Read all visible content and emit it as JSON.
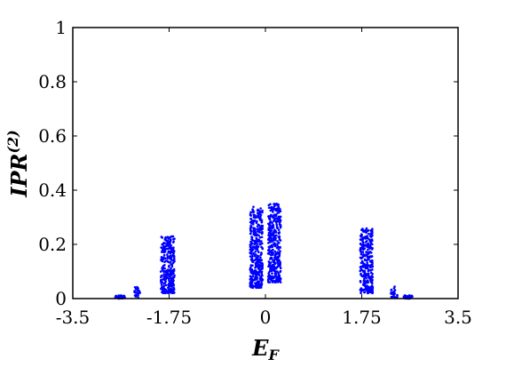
{
  "chart_data": {
    "type": "scatter",
    "xlabel": "E",
    "xlabel_sub": "F",
    "ylabel": "IPR",
    "ylabel_sup": "(2)",
    "xlim": [
      -3.5,
      3.5
    ],
    "ylim": [
      0,
      1
    ],
    "xticks": [
      -3.5,
      -1.75,
      0,
      1.75,
      3.5
    ],
    "xtick_labels": [
      "-3.5",
      "-1.75",
      "0",
      "1.75",
      "3.5"
    ],
    "yticks": [
      0,
      0.2,
      0.4,
      0.6,
      0.8,
      1
    ],
    "ytick_labels": [
      "0",
      "0.2",
      "0.4",
      "0.6",
      "0.8",
      "1"
    ],
    "grid": false,
    "marker_color": "#0000ff",
    "clusters": [
      {
        "x_min": -2.75,
        "x_max": -2.55,
        "y_min": 0.0,
        "y_max": 0.012,
        "n": 30
      },
      {
        "x_min": -2.38,
        "x_max": -2.28,
        "y_min": 0.005,
        "y_max": 0.045,
        "n": 25
      },
      {
        "x_min": -1.9,
        "x_max": -1.65,
        "y_min": 0.02,
        "y_max": 0.23,
        "n": 300
      },
      {
        "x_min": -0.28,
        "x_max": -0.05,
        "y_min": 0.04,
        "y_max": 0.34,
        "n": 380
      },
      {
        "x_min": 0.05,
        "x_max": 0.28,
        "y_min": 0.06,
        "y_max": 0.35,
        "n": 380
      },
      {
        "x_min": 1.72,
        "x_max": 1.95,
        "y_min": 0.02,
        "y_max": 0.26,
        "n": 300
      },
      {
        "x_min": 2.28,
        "x_max": 2.4,
        "y_min": 0.005,
        "y_max": 0.045,
        "n": 25
      },
      {
        "x_min": 2.5,
        "x_max": 2.68,
        "y_min": 0.0,
        "y_max": 0.012,
        "n": 30
      }
    ]
  }
}
